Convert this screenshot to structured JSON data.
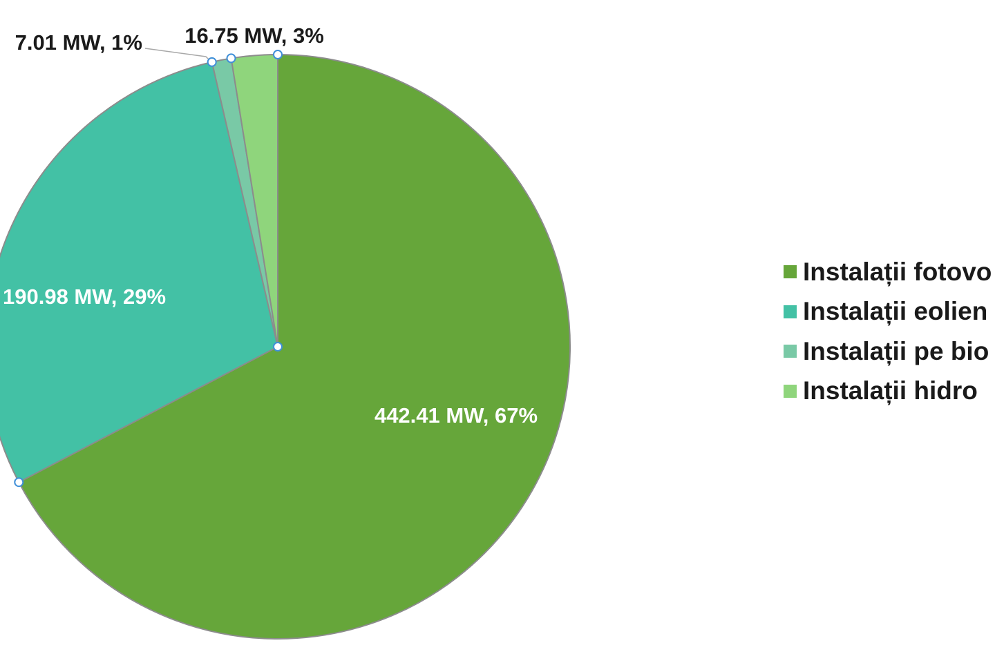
{
  "chart_data": {
    "type": "pie",
    "title": "",
    "start_angle_deg": 0,
    "direction": "clockwise",
    "slices": [
      {
        "name": "Instalații fotovo",
        "value": 442.41,
        "label": "442.41 MW, 67%",
        "color": "#66a63a",
        "label_color": "#ffffff"
      },
      {
        "name": "Instalații eolien",
        "value": 190.98,
        "label": "190.98 MW, 29%",
        "color": "#43c1a5",
        "label_color": "#ffffff"
      },
      {
        "name": "Instalații pe bio",
        "value": 7.01,
        "label": "7.01 MW, 1%",
        "color": "#79c9a6",
        "label_color": "#1a1a1a"
      },
      {
        "name": "Instalații hidro",
        "value": 16.75,
        "label": "16.75 MW, 3%",
        "color": "#8fd57c",
        "label_color": "#1a1a1a"
      }
    ],
    "legend": {
      "position": "right"
    },
    "selection_handles": true
  }
}
